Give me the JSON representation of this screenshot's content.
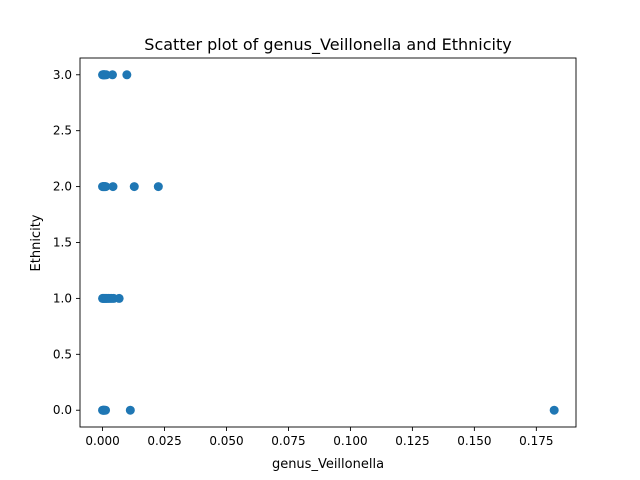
{
  "chart_data": {
    "type": "scatter",
    "title": "Scatter plot of genus_Veillonella and Ethnicity",
    "xlabel": "genus_Veillonella",
    "ylabel": "Ethnicity",
    "xlim": [
      -0.0091,
      0.191
    ],
    "ylim": [
      -0.15,
      3.15
    ],
    "xticks": [
      0.0,
      0.025,
      0.05,
      0.075,
      0.1,
      0.125,
      0.15,
      0.175
    ],
    "xtick_labels": [
      "0.000",
      "0.025",
      "0.050",
      "0.075",
      "0.100",
      "0.125",
      "0.150",
      "0.175"
    ],
    "yticks": [
      0.0,
      0.5,
      1.0,
      1.5,
      2.0,
      2.5,
      3.0
    ],
    "ytick_labels": [
      "0.0",
      "0.5",
      "1.0",
      "1.5",
      "2.0",
      "2.5",
      "3.0"
    ],
    "grid": false,
    "marker_color": "#1f77b4",
    "points": [
      {
        "x": 0.0,
        "y": 3.0
      },
      {
        "x": 0.0002,
        "y": 3.0
      },
      {
        "x": 0.0004,
        "y": 3.0
      },
      {
        "x": 0.0006,
        "y": 3.0
      },
      {
        "x": 0.0008,
        "y": 3.0
      },
      {
        "x": 0.001,
        "y": 3.0
      },
      {
        "x": 0.0015,
        "y": 3.0
      },
      {
        "x": 0.004,
        "y": 3.0
      },
      {
        "x": 0.0098,
        "y": 3.0
      },
      {
        "x": 0.0,
        "y": 2.0
      },
      {
        "x": 0.0002,
        "y": 2.0
      },
      {
        "x": 0.0004,
        "y": 2.0
      },
      {
        "x": 0.0006,
        "y": 2.0
      },
      {
        "x": 0.0008,
        "y": 2.0
      },
      {
        "x": 0.001,
        "y": 2.0
      },
      {
        "x": 0.0013,
        "y": 2.0
      },
      {
        "x": 0.0042,
        "y": 2.0
      },
      {
        "x": 0.0128,
        "y": 2.0
      },
      {
        "x": 0.0225,
        "y": 2.0
      },
      {
        "x": 0.0,
        "y": 1.0
      },
      {
        "x": 0.0003,
        "y": 1.0
      },
      {
        "x": 0.0006,
        "y": 1.0
      },
      {
        "x": 0.001,
        "y": 1.0
      },
      {
        "x": 0.0014,
        "y": 1.0
      },
      {
        "x": 0.0018,
        "y": 1.0
      },
      {
        "x": 0.0024,
        "y": 1.0
      },
      {
        "x": 0.003,
        "y": 1.0
      },
      {
        "x": 0.0037,
        "y": 1.0
      },
      {
        "x": 0.0045,
        "y": 1.0
      },
      {
        "x": 0.0067,
        "y": 1.0
      },
      {
        "x": 0.0,
        "y": 0.0
      },
      {
        "x": 0.0002,
        "y": 0.0
      },
      {
        "x": 0.0004,
        "y": 0.0
      },
      {
        "x": 0.0006,
        "y": 0.0
      },
      {
        "x": 0.0008,
        "y": 0.0
      },
      {
        "x": 0.0012,
        "y": 0.0
      },
      {
        "x": 0.0112,
        "y": 0.0
      },
      {
        "x": 0.1822,
        "y": 0.0
      }
    ]
  }
}
